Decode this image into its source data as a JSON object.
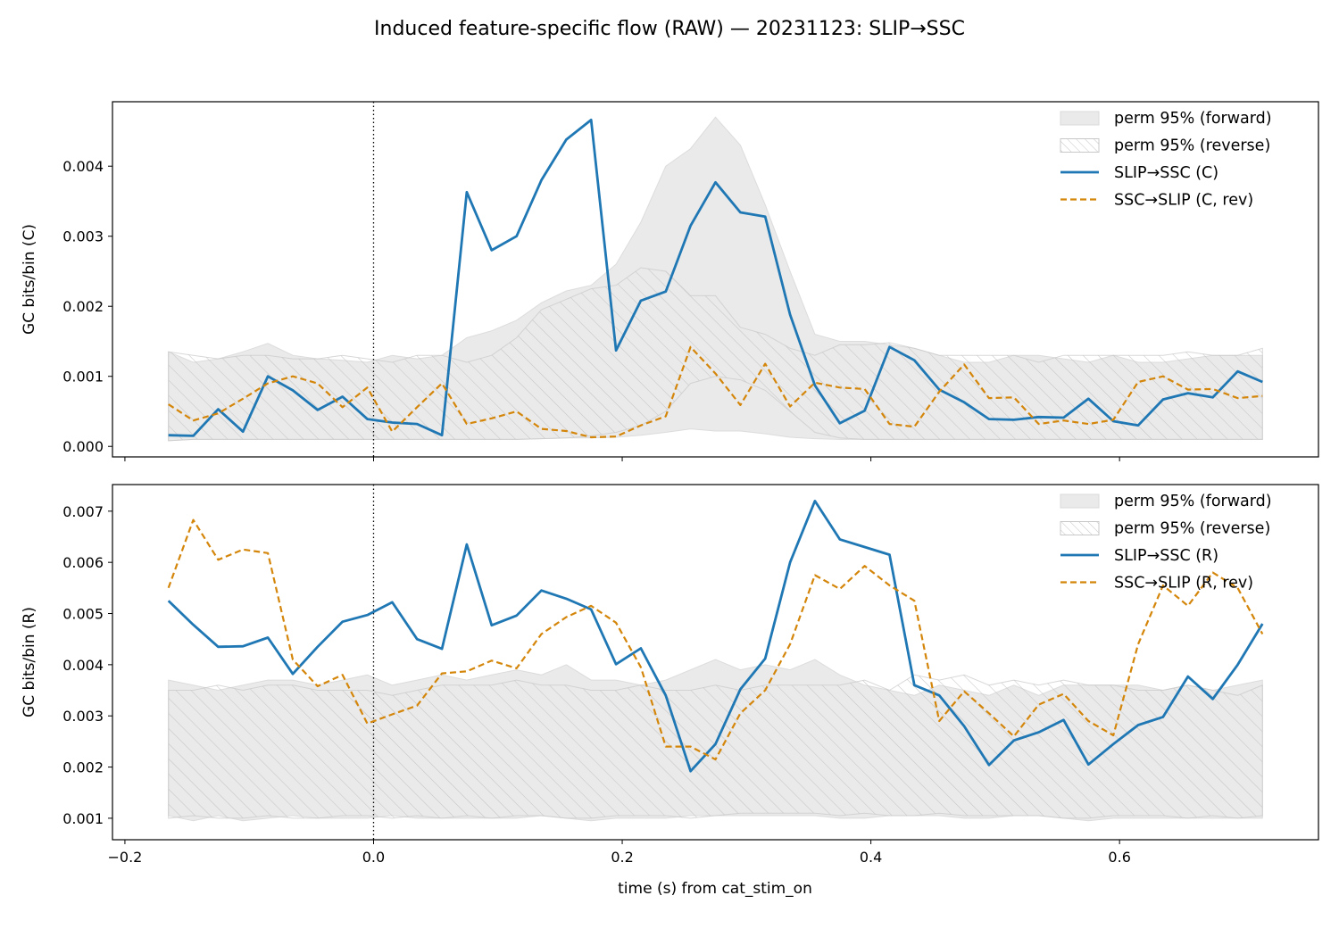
{
  "figure": {
    "title": "Induced feature-specific flow (RAW) — 20231123: SLIP→SSC",
    "xlabel": "time (s) from cat_stim_on"
  },
  "chart_data": [
    {
      "type": "line",
      "ylabel": "GC bits/bin (C)",
      "xlim": [
        -0.21,
        0.76
      ],
      "ylim": [
        -0.00015,
        0.00492
      ],
      "xticks": [
        -0.2,
        0.0,
        0.2,
        0.4,
        0.6
      ],
      "xtick_labels": [],
      "yticks": [
        0.0,
        0.001,
        0.002,
        0.003,
        0.004
      ],
      "ytick_labels": [
        "0.000",
        "0.001",
        "0.002",
        "0.003",
        "0.004"
      ],
      "vline_x": 0.0,
      "legend_position": "upper right",
      "x": [
        -0.165,
        -0.145,
        -0.125,
        -0.105,
        -0.085,
        -0.065,
        -0.045,
        -0.025,
        -0.005,
        0.015,
        0.035,
        0.055,
        0.075,
        0.095,
        0.115,
        0.135,
        0.155,
        0.175,
        0.195,
        0.215,
        0.235,
        0.255,
        0.275,
        0.295,
        0.315,
        0.335,
        0.355,
        0.375,
        0.395,
        0.415,
        0.435,
        0.455,
        0.475,
        0.495,
        0.515,
        0.535,
        0.555,
        0.575,
        0.595,
        0.615,
        0.635,
        0.655,
        0.675,
        0.695,
        0.715
      ],
      "bands": [
        {
          "name": "perm 95% (forward)",
          "style": "fill",
          "color": "#d9d9d9",
          "lower": [
            8e-05,
            0.0001,
            0.0001,
            0.0001,
            0.0001,
            0.0001,
            0.0001,
            0.0001,
            0.0001,
            0.0001,
            0.0001,
            0.0001,
            0.0001,
            0.0001,
            0.0001,
            0.00011,
            0.00012,
            0.00012,
            0.00013,
            0.00016,
            0.0002,
            0.00025,
            0.00022,
            0.00022,
            0.00018,
            0.00013,
            0.00011,
            0.0001,
            0.0001,
            0.0001,
            0.0001,
            0.0001,
            0.0001,
            0.0001,
            0.0001,
            0.0001,
            0.0001,
            0.0001,
            0.0001,
            0.0001,
            0.0001,
            0.0001,
            0.0001,
            0.0001,
            0.0001
          ],
          "upper": [
            0.00135,
            0.0012,
            0.00125,
            0.00135,
            0.00147,
            0.0013,
            0.00125,
            0.00123,
            0.0012,
            0.0013,
            0.00125,
            0.0013,
            0.00155,
            0.00165,
            0.0018,
            0.00205,
            0.00222,
            0.0023,
            0.0026,
            0.0032,
            0.004,
            0.00425,
            0.0047,
            0.0043,
            0.00345,
            0.0025,
            0.0016,
            0.0015,
            0.0015,
            0.00145,
            0.0014,
            0.0013,
            0.0012,
            0.0012,
            0.0013,
            0.0013,
            0.00125,
            0.0012,
            0.0013,
            0.0012,
            0.0012,
            0.00125,
            0.0013,
            0.0013,
            0.0013
          ]
        },
        {
          "name": "perm 95% (reverse)",
          "style": "hatch",
          "color": "#c8c8c8",
          "lower": [
            8e-05,
            0.0001,
            0.0001,
            0.0001,
            0.0001,
            0.0001,
            0.0001,
            0.0001,
            0.0001,
            0.0001,
            0.0001,
            0.0001,
            0.0001,
            0.0001,
            0.0001,
            0.00011,
            0.00012,
            0.00015,
            0.0002,
            0.0003,
            0.0005,
            0.0009,
            0.001,
            0.00095,
            0.0008,
            0.0005,
            0.0002,
            0.00012,
            0.0001,
            0.0001,
            0.0001,
            0.0001,
            0.0001,
            0.0001,
            0.0001,
            0.0001,
            0.0001,
            0.0001,
            0.0001,
            0.0001,
            0.0001,
            0.0001,
            0.0001,
            0.0001,
            0.0001
          ],
          "upper": [
            0.00135,
            0.0013,
            0.00125,
            0.0013,
            0.0013,
            0.00125,
            0.00125,
            0.0013,
            0.00125,
            0.0012,
            0.0013,
            0.0013,
            0.0012,
            0.0013,
            0.00155,
            0.00195,
            0.0021,
            0.00225,
            0.0023,
            0.00255,
            0.0025,
            0.00215,
            0.00215,
            0.0017,
            0.0016,
            0.0014,
            0.0013,
            0.00145,
            0.00145,
            0.00148,
            0.0014,
            0.0013,
            0.0013,
            0.0013,
            0.0013,
            0.0012,
            0.0013,
            0.0013,
            0.0013,
            0.0013,
            0.0013,
            0.00135,
            0.0013,
            0.0013,
            0.0014
          ]
        }
      ],
      "series": [
        {
          "name": "SLIP→SSC (C)",
          "color": "#1f77b4",
          "dash": "solid",
          "values": [
            0.00016,
            0.00015,
            0.00053,
            0.00021,
            0.001,
            0.0008,
            0.00052,
            0.00071,
            0.00039,
            0.00034,
            0.00032,
            0.00016,
            0.00363,
            0.0028,
            0.003,
            0.0038,
            0.00438,
            0.00466,
            0.00137,
            0.00208,
            0.00221,
            0.00315,
            0.00377,
            0.00334,
            0.00328,
            0.00188,
            0.00087,
            0.00033,
            0.00051,
            0.00142,
            0.00123,
            0.00081,
            0.00063,
            0.00039,
            0.00038,
            0.00042,
            0.00041,
            0.00068,
            0.00036,
            0.0003,
            0.00067,
            0.00076,
            0.0007,
            0.00107,
            0.00092
          ]
        },
        {
          "name": "SSC→SLIP (C, rev)",
          "color": "#d4860b",
          "dash": "dashed",
          "values": [
            0.0006,
            0.00037,
            0.00047,
            0.00068,
            0.0009,
            0.001,
            0.0009,
            0.00056,
            0.00084,
            0.00021,
            0.00056,
            0.0009,
            0.00032,
            0.0004,
            0.0005,
            0.00025,
            0.00022,
            0.00013,
            0.00014,
            0.0003,
            0.00043,
            0.00142,
            0.00104,
            0.00059,
            0.00118,
            0.00057,
            0.00091,
            0.00084,
            0.00082,
            0.00032,
            0.00028,
            0.00078,
            0.00117,
            0.00069,
            0.0007,
            0.00032,
            0.00037,
            0.00032,
            0.00038,
            0.00092,
            0.001,
            0.00081,
            0.00082,
            0.00069,
            0.00072
          ]
        }
      ]
    },
    {
      "type": "line",
      "ylabel": "GC bits/bin (R)",
      "xlim": [
        -0.21,
        0.76
      ],
      "ylim": [
        0.00058,
        0.00752
      ],
      "xticks": [
        -0.2,
        0.0,
        0.2,
        0.4,
        0.6
      ],
      "xtick_labels": [
        "−0.2",
        "0.0",
        "0.2",
        "0.4",
        "0.6"
      ],
      "yticks": [
        0.001,
        0.002,
        0.003,
        0.004,
        0.005,
        0.006,
        0.007
      ],
      "ytick_labels": [
        "0.001",
        "0.002",
        "0.003",
        "0.004",
        "0.005",
        "0.006",
        "0.007"
      ],
      "vline_x": 0.0,
      "legend_position": "upper right",
      "x": [
        -0.165,
        -0.145,
        -0.125,
        -0.105,
        -0.085,
        -0.065,
        -0.045,
        -0.025,
        -0.005,
        0.015,
        0.035,
        0.055,
        0.075,
        0.095,
        0.115,
        0.135,
        0.155,
        0.175,
        0.195,
        0.215,
        0.235,
        0.255,
        0.275,
        0.295,
        0.315,
        0.335,
        0.355,
        0.375,
        0.395,
        0.415,
        0.435,
        0.455,
        0.475,
        0.495,
        0.515,
        0.535,
        0.555,
        0.575,
        0.595,
        0.615,
        0.635,
        0.655,
        0.675,
        0.695,
        0.715
      ],
      "bands": [
        {
          "name": "perm 95% (forward)",
          "style": "fill",
          "color": "#d9d9d9",
          "lower": [
            0.00105,
            0.00095,
            0.00105,
            0.00095,
            0.001,
            0.00105,
            0.001,
            0.001,
            0.001,
            0.00105,
            0.001,
            0.001,
            0.001,
            0.001,
            0.001,
            0.00105,
            0.001,
            0.00095,
            0.001,
            0.001,
            0.001,
            0.00105,
            0.00105,
            0.00105,
            0.00105,
            0.00105,
            0.00105,
            0.001,
            0.001,
            0.00105,
            0.00105,
            0.00105,
            0.001,
            0.001,
            0.00105,
            0.00105,
            0.001,
            0.00095,
            0.001,
            0.001,
            0.001,
            0.001,
            0.001,
            0.001,
            0.001
          ],
          "upper": [
            0.0037,
            0.0036,
            0.0035,
            0.0036,
            0.0037,
            0.0037,
            0.0036,
            0.0037,
            0.0038,
            0.0036,
            0.0037,
            0.0038,
            0.0037,
            0.0038,
            0.0039,
            0.0038,
            0.004,
            0.0037,
            0.0037,
            0.0036,
            0.0037,
            0.0039,
            0.0041,
            0.0039,
            0.004,
            0.0039,
            0.0041,
            0.0038,
            0.0036,
            0.0035,
            0.0034,
            0.0036,
            0.0035,
            0.0034,
            0.0036,
            0.0034,
            0.0036,
            0.0036,
            0.0036,
            0.0036,
            0.0035,
            0.0036,
            0.0035,
            0.0036,
            0.0037
          ]
        },
        {
          "name": "perm 95% (reverse)",
          "style": "hatch",
          "color": "#c8c8c8",
          "lower": [
            0.001,
            0.00105,
            0.001,
            0.001,
            0.00105,
            0.001,
            0.001,
            0.00105,
            0.00105,
            0.001,
            0.00105,
            0.001,
            0.00105,
            0.001,
            0.00105,
            0.00105,
            0.001,
            0.001,
            0.00105,
            0.00105,
            0.00105,
            0.001,
            0.00105,
            0.0011,
            0.0011,
            0.0011,
            0.0011,
            0.00105,
            0.0011,
            0.00105,
            0.00105,
            0.0011,
            0.00105,
            0.00105,
            0.00105,
            0.00105,
            0.001,
            0.001,
            0.00105,
            0.00105,
            0.00105,
            0.001,
            0.00105,
            0.001,
            0.00105
          ],
          "upper": [
            0.0035,
            0.0035,
            0.0036,
            0.0035,
            0.0036,
            0.0036,
            0.0035,
            0.0035,
            0.0035,
            0.0034,
            0.0035,
            0.0036,
            0.0036,
            0.0036,
            0.0037,
            0.0036,
            0.0036,
            0.0035,
            0.0035,
            0.0036,
            0.0035,
            0.0035,
            0.0036,
            0.0035,
            0.0036,
            0.0036,
            0.0036,
            0.0036,
            0.0037,
            0.0035,
            0.0038,
            0.0037,
            0.0038,
            0.0036,
            0.0037,
            0.0036,
            0.0037,
            0.0036,
            0.0036,
            0.0035,
            0.0035,
            0.0036,
            0.0035,
            0.0034,
            0.0036
          ]
        }
      ],
      "series": [
        {
          "name": "SLIP→SSC (R)",
          "color": "#1f77b4",
          "dash": "solid",
          "values": [
            0.00525,
            0.00478,
            0.00435,
            0.00436,
            0.00453,
            0.00382,
            0.00435,
            0.00484,
            0.00497,
            0.00522,
            0.0045,
            0.00431,
            0.00635,
            0.00477,
            0.00496,
            0.00545,
            0.00529,
            0.00508,
            0.00401,
            0.00432,
            0.0034,
            0.00192,
            0.00245,
            0.00352,
            0.00412,
            0.006,
            0.0072,
            0.00645,
            0.0063,
            0.00615,
            0.0036,
            0.0034,
            0.0028,
            0.00204,
            0.00252,
            0.00268,
            0.00292,
            0.00205,
            0.00245,
            0.00282,
            0.00298,
            0.00377,
            0.00333,
            0.004,
            0.0048
          ]
        },
        {
          "name": "SSC→SLIP (R, rev)",
          "color": "#d4860b",
          "dash": "dashed",
          "values": [
            0.0055,
            0.00683,
            0.00605,
            0.00625,
            0.00618,
            0.0041,
            0.00358,
            0.0038,
            0.00285,
            0.00303,
            0.0032,
            0.00383,
            0.00387,
            0.00408,
            0.00393,
            0.0046,
            0.00493,
            0.00515,
            0.00482,
            0.00395,
            0.0024,
            0.0024,
            0.00215,
            0.00305,
            0.0035,
            0.0044,
            0.00575,
            0.00548,
            0.00593,
            0.00555,
            0.00525,
            0.0029,
            0.00348,
            0.00305,
            0.0026,
            0.00322,
            0.00343,
            0.0029,
            0.00262,
            0.0044,
            0.00555,
            0.00515,
            0.0058,
            0.0055,
            0.0046
          ]
        }
      ]
    }
  ]
}
